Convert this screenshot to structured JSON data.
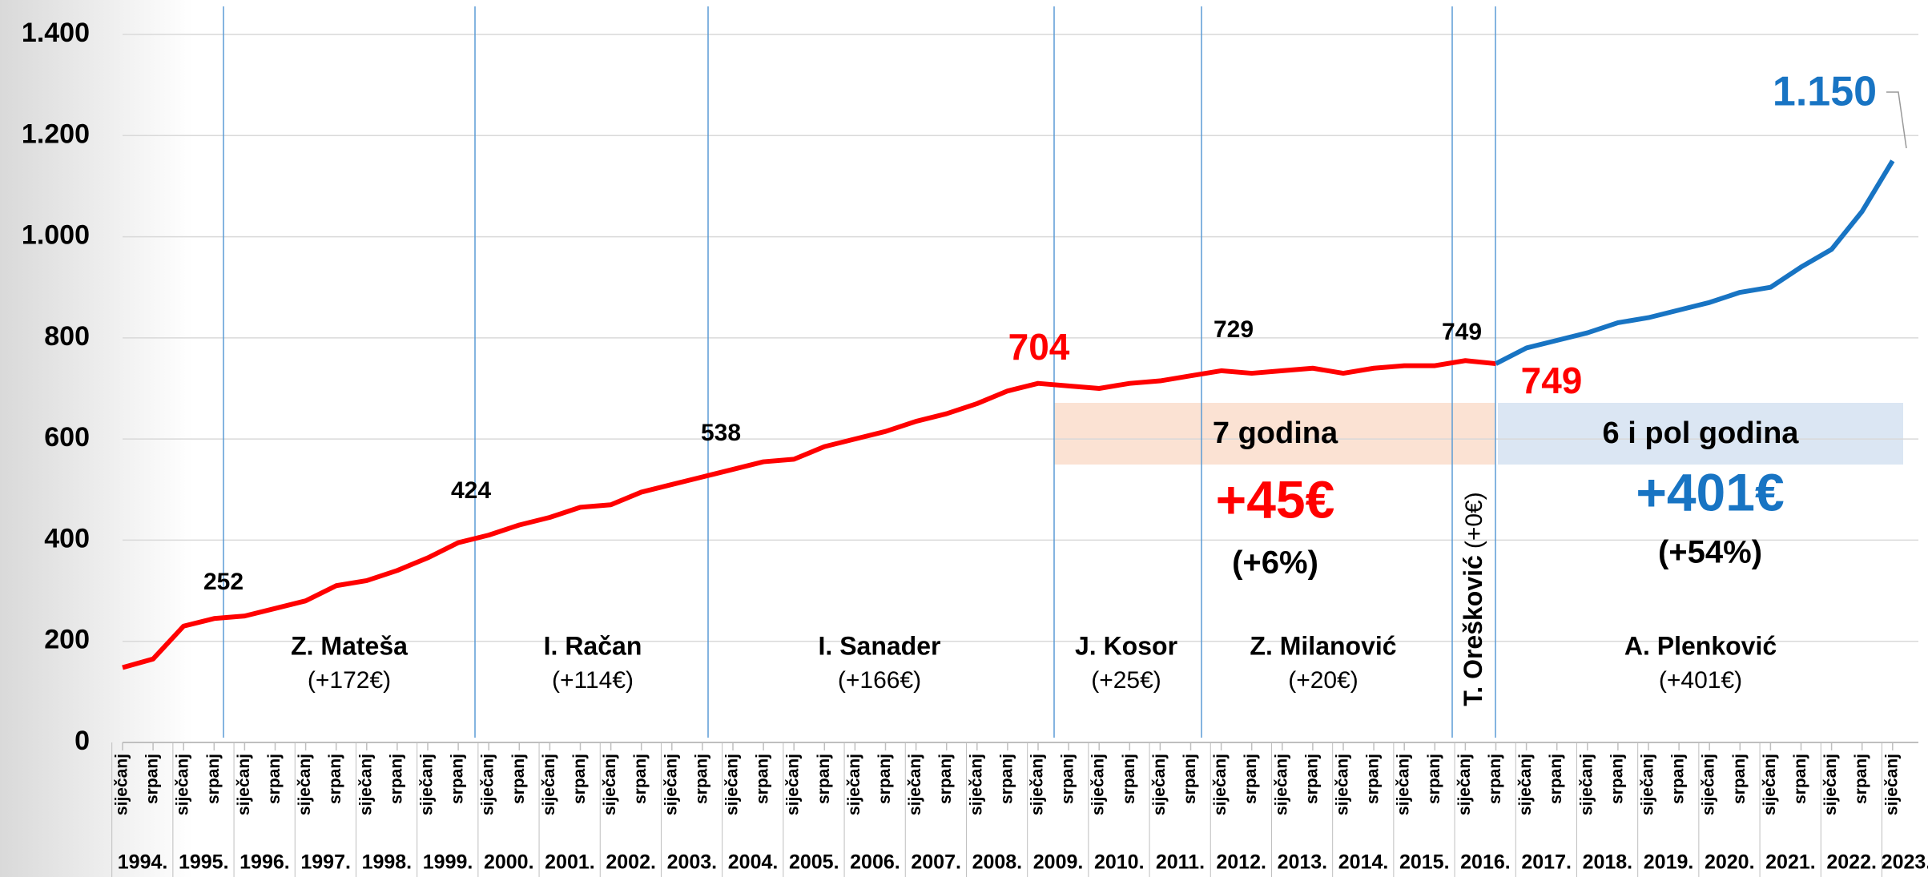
{
  "chart_data": {
    "type": "line",
    "categories": [
      "siječanj",
      "srpanj",
      "siječanj",
      "srpanj",
      "siječanj",
      "srpanj",
      "siječanj",
      "srpanj",
      "siječanj",
      "srpanj",
      "siječanj",
      "srpanj",
      "siječanj",
      "srpanj",
      "siječanj",
      "srpanj",
      "siječanj",
      "srpanj",
      "siječanj",
      "srpanj",
      "siječanj",
      "srpanj",
      "siječanj",
      "srpanj",
      "siječanj",
      "srpanj",
      "siječanj",
      "srpanj",
      "siječanj",
      "srpanj",
      "siječanj",
      "srpanj",
      "siječanj",
      "srpanj",
      "siječanj",
      "srpanj",
      "siječanj",
      "srpanj",
      "siječanj",
      "srpanj",
      "siječanj",
      "srpanj",
      "siječanj",
      "srpanj",
      "siječanj",
      "srpanj",
      "siječanj",
      "srpanj",
      "siječanj",
      "srpanj",
      "siječanj",
      "srpanj",
      "siječanj",
      "srpanj",
      "siječanj",
      "srpanj",
      "siječanj",
      "srpanj",
      "siječanj"
    ],
    "years": [
      "1994.",
      "1995.",
      "1996.",
      "1997.",
      "1998.",
      "1999.",
      "2000.",
      "2001.",
      "2002.",
      "2003.",
      "2004.",
      "2005.",
      "2006.",
      "2007.",
      "2008.",
      "2009.",
      "2010.",
      "2011.",
      "2012.",
      "2013.",
      "2014.",
      "2015.",
      "2016.",
      "2017.",
      "2018.",
      "2019.",
      "2020.",
      "2021.",
      "2022.",
      "2023."
    ],
    "series": [
      {
        "color": "#ff0000",
        "values": [
          148,
          165,
          230,
          245,
          250,
          265,
          280,
          310,
          320,
          340,
          365,
          395,
          410,
          430,
          445,
          465,
          470,
          495,
          510,
          525,
          540,
          555,
          560,
          585,
          600,
          615,
          635,
          650,
          670,
          695,
          710,
          705,
          700,
          710,
          715,
          725,
          735,
          730,
          735,
          740,
          730,
          740,
          745,
          745,
          755,
          749,
          null,
          null,
          null,
          null,
          null,
          null,
          null,
          null,
          null,
          null,
          null,
          null,
          null
        ]
      },
      {
        "color": "#1874c3",
        "values": [
          null,
          null,
          null,
          null,
          null,
          null,
          null,
          null,
          null,
          null,
          null,
          null,
          null,
          null,
          null,
          null,
          null,
          null,
          null,
          null,
          null,
          null,
          null,
          null,
          null,
          null,
          null,
          null,
          null,
          null,
          null,
          null,
          null,
          null,
          null,
          null,
          null,
          null,
          null,
          null,
          null,
          null,
          null,
          null,
          null,
          749,
          780,
          795,
          810,
          830,
          840,
          855,
          870,
          890,
          900,
          940,
          975,
          1050,
          1150
        ]
      }
    ],
    "ylim": [
      0,
      1400
    ],
    "yticks": [
      0,
      200,
      400,
      600,
      800,
      {
        "value": 1000,
        "label": "1.000"
      },
      {
        "value": 1200,
        "label": "1.200"
      },
      {
        "value": 1400,
        "label": "1.400"
      }
    ],
    "grid": true,
    "annotations": [
      "252",
      "424",
      "538",
      "704",
      "729",
      "749",
      "749",
      "1.150"
    ],
    "governments": [
      {
        "name": "Z. Mateša",
        "change": "(+172€)"
      },
      {
        "name": "I. Račan",
        "change": "(+114€)"
      },
      {
        "name": "I. Sanader",
        "change": "(+166€)"
      },
      {
        "name": "J. Kosor",
        "change": "(+25€)"
      },
      {
        "name": "Z. Milanović",
        "change": "(+20€)"
      },
      {
        "name": "A. Plenković",
        "change": "(+401€)"
      }
    ],
    "oreskovic": {
      "name": "T. Orešković",
      "change": "(+0€)"
    },
    "period_red": {
      "label": "7 godina",
      "change": "+45€",
      "percent": "(+6%)"
    },
    "period_blue": {
      "label": "6 i pol godina",
      "change": "+401€",
      "percent": "(+54%)"
    }
  }
}
